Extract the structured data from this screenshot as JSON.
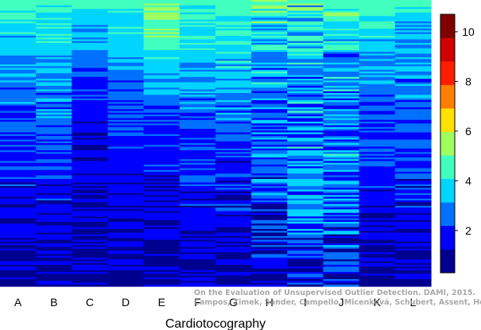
{
  "chart_data": {
    "type": "heatmap",
    "title": "",
    "xlabel": "Cardiotocography",
    "ylabel": "",
    "columns": [
      "A",
      "B",
      "C",
      "D",
      "E",
      "F",
      "G",
      "H",
      "I",
      "J",
      "K",
      "L"
    ],
    "colorbar": {
      "ticks": [
        2,
        4,
        6,
        8,
        10
      ],
      "range": [
        0.3,
        10.7
      ],
      "colors": [
        "#00008f",
        "#0000ff",
        "#0070ff",
        "#00d5ff",
        "#40ffbf",
        "#9fff60",
        "#ffe000",
        "#ff8000",
        "#ff1f00",
        "#d00000",
        "#800000"
      ]
    },
    "row_count": 160,
    "column_profiles": [
      {
        "column": "A",
        "levels": [
          4.0,
          3.5,
          2.8,
          2.3,
          1.9,
          1.5,
          1.2,
          1.0
        ],
        "noise": 0.7
      },
      {
        "column": "B",
        "levels": [
          4.2,
          3.8,
          3.0,
          2.4,
          1.9,
          1.6,
          1.3,
          1.0
        ],
        "noise": 0.7
      },
      {
        "column": "C",
        "levels": [
          4.1,
          3.2,
          2.2,
          1.7,
          1.4,
          1.2,
          1.1,
          1.0
        ],
        "noise": 0.5
      },
      {
        "column": "D",
        "levels": [
          4.3,
          3.8,
          2.6,
          2.0,
          1.7,
          1.4,
          1.2,
          1.0
        ],
        "noise": 0.5
      },
      {
        "column": "E",
        "levels": [
          5.0,
          4.6,
          3.0,
          2.2,
          1.8,
          1.4,
          1.2,
          1.0
        ],
        "noise": 0.6
      },
      {
        "column": "F",
        "levels": [
          4.4,
          4.0,
          3.1,
          2.4,
          2.0,
          1.6,
          1.3,
          1.1
        ],
        "noise": 0.7
      },
      {
        "column": "G",
        "levels": [
          4.4,
          4.0,
          3.2,
          2.5,
          2.0,
          1.6,
          1.3,
          1.1
        ],
        "noise": 0.8
      },
      {
        "column": "H",
        "levels": [
          4.2,
          3.6,
          3.0,
          2.6,
          2.4,
          2.1,
          1.8,
          1.5
        ],
        "noise": 1.3
      },
      {
        "column": "I",
        "levels": [
          4.3,
          3.6,
          3.0,
          2.8,
          3.0,
          2.7,
          1.9,
          1.3
        ],
        "noise": 1.3
      },
      {
        "column": "J",
        "levels": [
          4.3,
          3.6,
          3.0,
          2.8,
          3.0,
          2.8,
          2.0,
          1.4
        ],
        "noise": 1.3
      },
      {
        "column": "K",
        "levels": [
          4.3,
          3.6,
          2.8,
          2.3,
          1.9,
          1.5,
          1.2,
          1.0
        ],
        "noise": 0.6
      },
      {
        "column": "L",
        "levels": [
          4.0,
          3.3,
          2.7,
          2.3,
          2.0,
          1.7,
          1.4,
          1.1
        ],
        "noise": 0.8
      }
    ]
  },
  "watermark": {
    "line1": "On the Evaluation of Unsupervised Outlier Detection. DAMI, 2015.",
    "line2": "Campos, Zimek, Sander, Campello, Micenková, Schubert, Assent, Houle"
  }
}
